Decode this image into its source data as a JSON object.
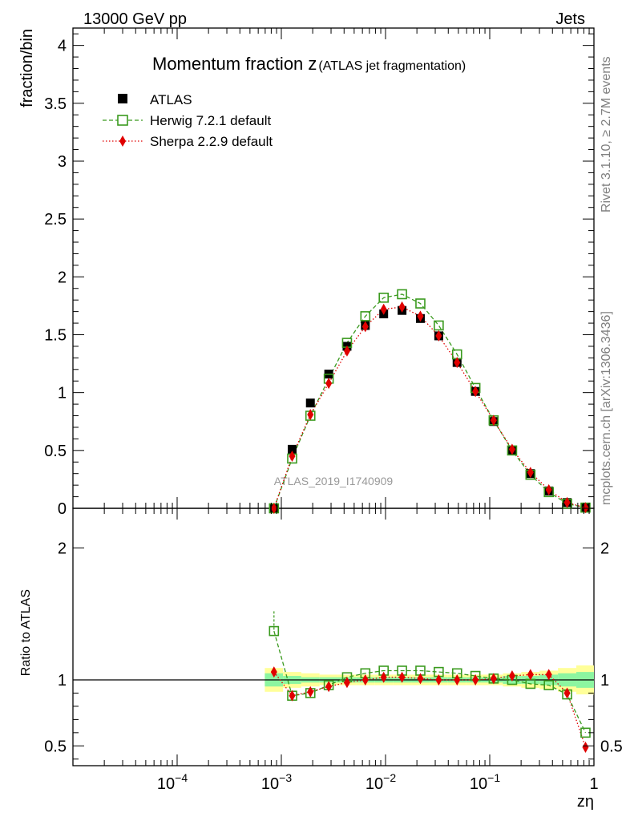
{
  "header": {
    "left": "13000 GeV pp",
    "right": "Jets"
  },
  "side_labels": {
    "rivet": "Rivet 3.1.10, ≥ 2.7M events",
    "mcplots": "mcplots.cern.ch [arXiv:1306.3436]"
  },
  "chart_data": {
    "type": "scatter",
    "title_main": "Momentum fraction z",
    "title_sub": "(ATLAS jet fragmentation)",
    "ylabel": "fraction/bin",
    "ratio_ylabel": "Ratio to ATLAS",
    "xlabel": "zη",
    "watermark": "ATLAS_2019_I1740909",
    "x_scale": "log",
    "xlim": [
      1e-05,
      1
    ],
    "ylim": [
      0,
      4.15
    ],
    "ratio_ylim": [
      0.35,
      2.3
    ],
    "x_tick_labels": [
      {
        "value": 0.0001,
        "base": "10",
        "exp": "−4"
      },
      {
        "value": 0.001,
        "base": "10",
        "exp": "−3"
      },
      {
        "value": 0.01,
        "base": "10",
        "exp": "−2"
      },
      {
        "value": 0.1,
        "base": "10",
        "exp": "−1"
      },
      {
        "value": 1,
        "base": "1",
        "exp": ""
      }
    ],
    "y_tick_labels": [
      "0",
      "0.5",
      "1",
      "1.5",
      "2",
      "2.5",
      "3",
      "3.5",
      "4"
    ],
    "ratio_tick_labels": [
      "0.5",
      "1",
      "2"
    ],
    "legend": [
      "ATLAS",
      "Herwig 7.2.1 default",
      "Sherpa 2.2.9 default"
    ],
    "legend_position": "top-left",
    "x": [
      0.00085,
      0.00127,
      0.0019,
      0.00285,
      0.00427,
      0.0064,
      0.0096,
      0.0144,
      0.0216,
      0.0324,
      0.0486,
      0.0729,
      0.109,
      0.164,
      0.246,
      0.369,
      0.553,
      0.83
    ],
    "series": [
      {
        "name": "ATLAS",
        "color": "#000000",
        "marker": "square-filled",
        "values": [
          0.0,
          0.51,
          0.91,
          1.16,
          1.4,
          1.58,
          1.68,
          1.71,
          1.64,
          1.49,
          1.26,
          1.01,
          0.75,
          0.5,
          0.3,
          0.15,
          0.05,
          0.01
        ]
      },
      {
        "name": "Herwig 7.2.1 default",
        "color": "#3a9a1e",
        "marker": "square-open",
        "line": "dashed",
        "values": [
          0.0,
          0.43,
          0.8,
          1.12,
          1.43,
          1.66,
          1.82,
          1.85,
          1.77,
          1.58,
          1.33,
          1.04,
          0.76,
          0.5,
          0.29,
          0.14,
          0.04,
          0.006
        ]
      },
      {
        "name": "Sherpa 2.2.9 default",
        "color": "#e00000",
        "marker": "diamond-filled",
        "line": "dotted",
        "values": [
          0.0,
          0.45,
          0.81,
          1.08,
          1.36,
          1.57,
          1.72,
          1.74,
          1.66,
          1.49,
          1.26,
          1.01,
          0.76,
          0.51,
          0.31,
          0.16,
          0.05,
          0.005
        ]
      }
    ],
    "ratio": {
      "x": [
        0.00085,
        0.00127,
        0.0019,
        0.00285,
        0.00427,
        0.0064,
        0.0096,
        0.0144,
        0.0216,
        0.0324,
        0.0486,
        0.0729,
        0.109,
        0.164,
        0.246,
        0.369,
        0.553,
        0.83
      ],
      "herwig": [
        1.37,
        0.88,
        0.9,
        0.96,
        1.02,
        1.05,
        1.07,
        1.07,
        1.07,
        1.06,
        1.05,
        1.03,
        1.01,
        1.0,
        0.97,
        0.96,
        0.89,
        0.6
      ],
      "sherpa": [
        1.06,
        0.88,
        0.91,
        0.95,
        0.98,
        1.0,
        1.02,
        1.02,
        1.01,
        1.0,
        1.0,
        1.0,
        1.01,
        1.03,
        1.04,
        1.04,
        0.9,
        0.49
      ],
      "herwig_err_up": [
        1.52,
        null,
        null,
        null,
        null,
        null,
        null,
        null,
        null,
        null,
        null,
        null,
        null,
        null,
        null,
        null,
        null,
        null
      ],
      "band_inner": [
        0.05,
        0.03,
        0.02,
        0.02,
        0.02,
        0.02,
        0.02,
        0.02,
        0.02,
        0.02,
        0.02,
        0.02,
        0.02,
        0.03,
        0.03,
        0.04,
        0.05,
        0.06
      ],
      "band_outer": [
        0.09,
        0.06,
        0.05,
        0.04,
        0.04,
        0.04,
        0.04,
        0.04,
        0.04,
        0.04,
        0.04,
        0.04,
        0.04,
        0.05,
        0.06,
        0.07,
        0.09,
        0.11
      ]
    }
  }
}
